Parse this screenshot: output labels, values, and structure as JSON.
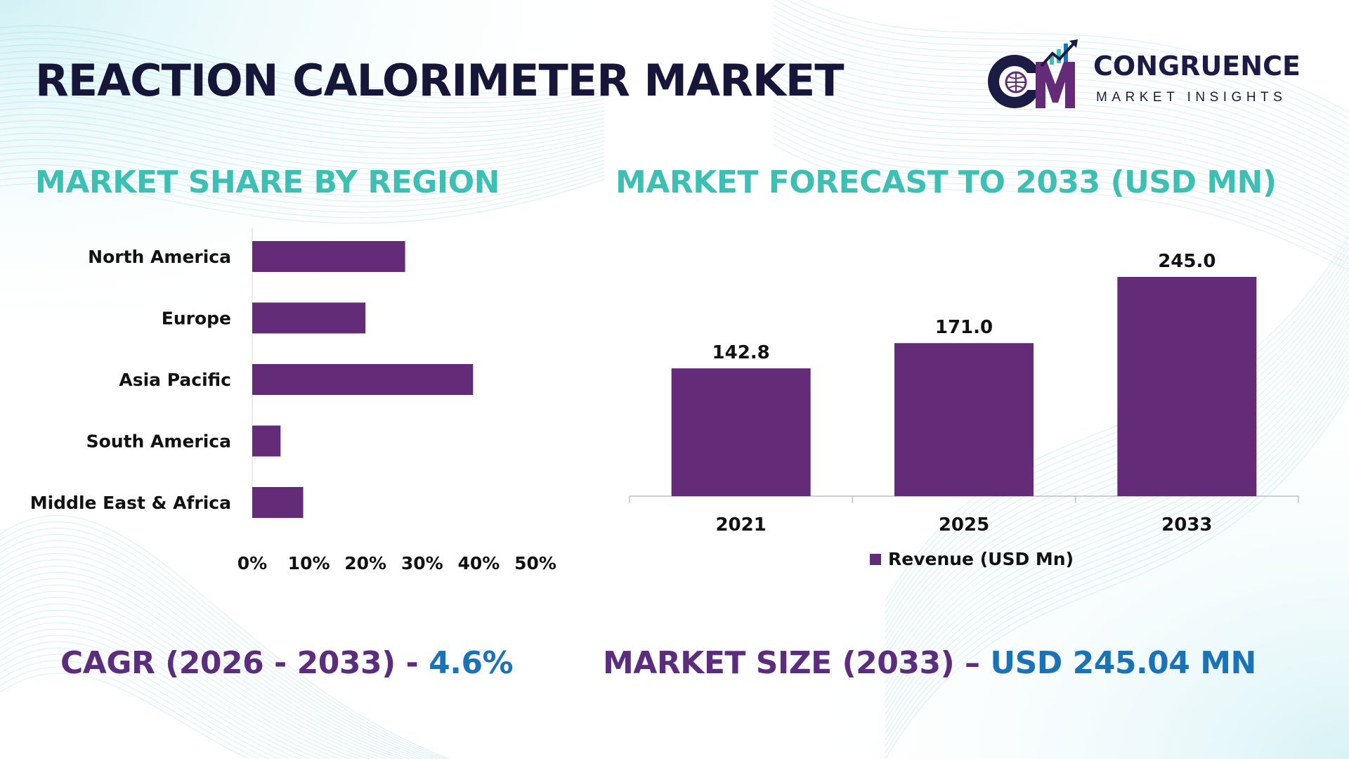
{
  "title": "REACTION CALORIMETER MARKET",
  "logo": {
    "name": "CONGRUENCE",
    "tagline": "MARKET INSIGHTS",
    "mark_letters": "CM"
  },
  "colors": {
    "bar": "#642c78",
    "title_dark": "#16163a",
    "teal": "#3ebfb3",
    "purple": "#5c2d7e",
    "blue": "#1a73b8"
  },
  "sections": {
    "share_title": "MARKET SHARE BY REGION",
    "forecast_title": "MARKET FORECAST TO 2033 (USD MN)"
  },
  "stats": {
    "cagr_label": "CAGR (2026 - 2033) - ",
    "cagr_value": "4.6%",
    "size_label": "MARKET SIZE (2033) – ",
    "size_value": "USD 245.04 MN"
  },
  "chart_data": [
    {
      "type": "bar",
      "orientation": "horizontal",
      "categories": [
        "North America",
        "Europe",
        "Asia Pacific",
        "South America",
        "Middle East & Africa"
      ],
      "values": [
        27,
        20,
        39,
        5,
        9
      ],
      "xlim": [
        0,
        50
      ],
      "tick_labels": [
        "0%",
        "10%",
        "20%",
        "30%",
        "40%",
        "50%"
      ]
    },
    {
      "type": "bar",
      "categories": [
        "2021",
        "2025",
        "2033"
      ],
      "series": [
        {
          "name": "Revenue (USD Mn)",
          "values": [
            142.8,
            171.0,
            245.0
          ]
        }
      ],
      "data_labels": [
        "142.8",
        "171.0",
        "245.0"
      ],
      "ylim": [
        0,
        260
      ],
      "legend": "bottom"
    }
  ]
}
